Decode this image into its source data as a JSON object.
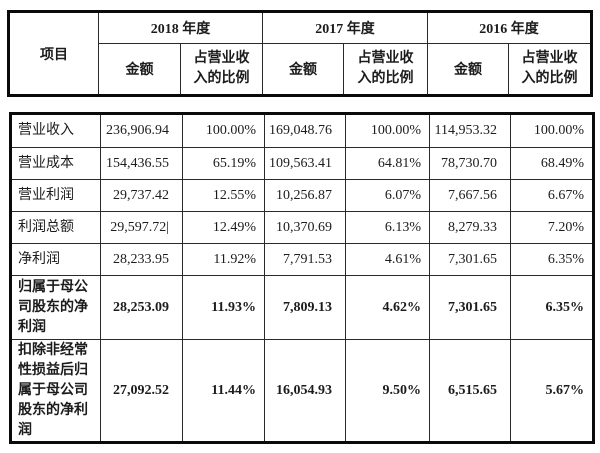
{
  "colors": {
    "background": "#ffffff",
    "text": "#1c1c1c",
    "border": "#0a0a0a"
  },
  "table": {
    "item_header": "项目",
    "cursor": "|",
    "col_groups": [
      {
        "year": "2018 年度",
        "amount_label": "金额",
        "ratio_label": "占营业收\n入的比例"
      },
      {
        "year": "2017 年度",
        "amount_label": "金额",
        "ratio_label": "占营业收\n入的比例"
      },
      {
        "year": "2016 年度",
        "amount_label": "金额",
        "ratio_label": "占营业收\n入的比例"
      }
    ],
    "rows": [
      {
        "label": "营业收入",
        "values": [
          "236,906.94",
          "100.00%",
          "169,048.76",
          "100.00%",
          "114,953.32",
          "100.00%"
        ]
      },
      {
        "label": "营业成本",
        "values": [
          "154,436.55",
          "65.19%",
          "109,563.41",
          "64.81%",
          "78,730.70",
          "68.49%"
        ]
      },
      {
        "label": "营业利润",
        "values": [
          "29,737.42",
          "12.55%",
          "10,256.87",
          "6.07%",
          "7,667.56",
          "6.67%"
        ]
      },
      {
        "label": "利润总额",
        "values": [
          "29,597.72",
          "12.49%",
          "10,370.69",
          "6.13%",
          "8,279.33",
          "7.20%"
        ]
      },
      {
        "label": "净利润",
        "values": [
          "28,233.95",
          "11.92%",
          "7,791.53",
          "4.61%",
          "7,301.65",
          "6.35%"
        ]
      },
      {
        "label": "归属于母公\n司股东的净\n利润",
        "values": [
          "28,253.09",
          "11.93%",
          "7,809.13",
          "4.62%",
          "7,301.65",
          "6.35%"
        ]
      },
      {
        "label": "扣除非经常\n性损益后归\n属于母公司\n股东的净利\n润",
        "values": [
          "27,092.52",
          "11.44%",
          "16,054.93",
          "9.50%",
          "6,515.65",
          "5.67%"
        ]
      }
    ]
  }
}
